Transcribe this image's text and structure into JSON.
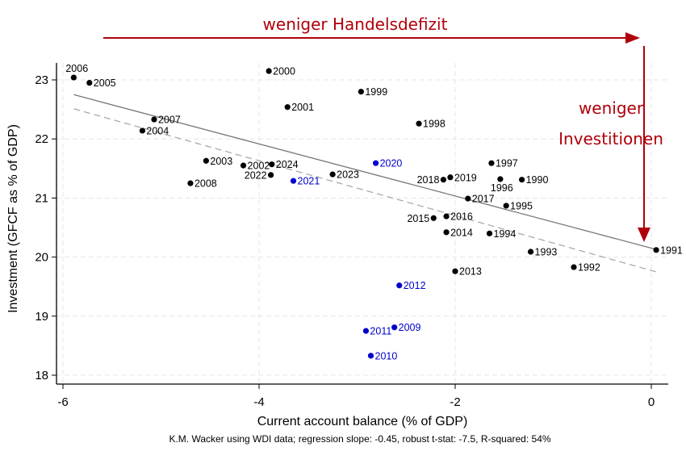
{
  "chart_data": {
    "type": "scatter",
    "title": "",
    "xlabel": "Current account balance (% of GDP)",
    "ylabel": "Investment (GFCF as % of GDP)",
    "note": "K.M. Wacker using WDI data; regression slope: -0.45, robust t-stat: -7.5, R-squared: 54%",
    "xlim": [
      -6.1,
      0.1
    ],
    "ylim": [
      17.85,
      23.3
    ],
    "xticks": [
      -6,
      -4,
      -2,
      0
    ],
    "yticks": [
      18,
      19,
      20,
      21,
      22,
      23
    ],
    "grid": true,
    "colors": {
      "default": "#000000",
      "highlight": "#0000cc",
      "fit": "#777777",
      "fit_dashed": "#aaaaaa",
      "annotation": "#b0000a"
    },
    "points": [
      {
        "label": "2006",
        "x": -5.89,
        "y": 23.04,
        "highlight": false
      },
      {
        "label": "2005",
        "x": -5.73,
        "y": 22.95,
        "highlight": false
      },
      {
        "label": "2007",
        "x": -5.07,
        "y": 22.33,
        "highlight": false
      },
      {
        "label": "2004",
        "x": -5.19,
        "y": 22.14,
        "highlight": false
      },
      {
        "label": "2000",
        "x": -3.9,
        "y": 23.15,
        "highlight": false
      },
      {
        "label": "2001",
        "x": -3.71,
        "y": 22.54,
        "highlight": false
      },
      {
        "label": "1999",
        "x": -2.96,
        "y": 22.8,
        "highlight": false
      },
      {
        "label": "1998",
        "x": -2.37,
        "y": 22.26,
        "highlight": false
      },
      {
        "label": "2003",
        "x": -4.54,
        "y": 21.63,
        "highlight": false
      },
      {
        "label": "2002",
        "x": -4.16,
        "y": 21.55,
        "highlight": false
      },
      {
        "label": "2024",
        "x": -3.87,
        "y": 21.57,
        "highlight": false
      },
      {
        "label": "2022",
        "x": -3.88,
        "y": 21.39,
        "highlight": false
      },
      {
        "label": "2021",
        "x": -3.65,
        "y": 21.29,
        "highlight": true
      },
      {
        "label": "2023",
        "x": -3.25,
        "y": 21.4,
        "highlight": false
      },
      {
        "label": "2008",
        "x": -4.7,
        "y": 21.25,
        "highlight": false
      },
      {
        "label": "2020",
        "x": -2.81,
        "y": 21.59,
        "highlight": true
      },
      {
        "label": "1997",
        "x": -1.63,
        "y": 21.59,
        "highlight": false
      },
      {
        "label": "2018",
        "x": -2.12,
        "y": 21.31,
        "highlight": false
      },
      {
        "label": "2019",
        "x": -2.05,
        "y": 21.35,
        "highlight": false
      },
      {
        "label": "1996",
        "x": -1.54,
        "y": 21.32,
        "highlight": false
      },
      {
        "label": "1990",
        "x": -1.32,
        "y": 21.31,
        "highlight": false
      },
      {
        "label": "2017",
        "x": -1.87,
        "y": 20.99,
        "highlight": false
      },
      {
        "label": "1995",
        "x": -1.48,
        "y": 20.87,
        "highlight": false
      },
      {
        "label": "2015",
        "x": -2.22,
        "y": 20.66,
        "highlight": false
      },
      {
        "label": "2016",
        "x": -2.09,
        "y": 20.69,
        "highlight": false
      },
      {
        "label": "2014",
        "x": -2.09,
        "y": 20.42,
        "highlight": false
      },
      {
        "label": "1994",
        "x": -1.65,
        "y": 20.4,
        "highlight": false
      },
      {
        "label": "1993",
        "x": -1.23,
        "y": 20.09,
        "highlight": false
      },
      {
        "label": "1991",
        "x": 0.05,
        "y": 20.12,
        "highlight": false
      },
      {
        "label": "1992",
        "x": -0.79,
        "y": 19.83,
        "highlight": false
      },
      {
        "label": "2013",
        "x": -2.0,
        "y": 19.76,
        "highlight": false
      },
      {
        "label": "2012",
        "x": -2.57,
        "y": 19.52,
        "highlight": true
      },
      {
        "label": "2009",
        "x": -2.62,
        "y": 18.81,
        "highlight": true
      },
      {
        "label": "2011",
        "x": -2.91,
        "y": 18.75,
        "highlight": true
      },
      {
        "label": "2010",
        "x": -2.86,
        "y": 18.33,
        "highlight": true
      }
    ],
    "fit_lines": [
      {
        "style": "solid",
        "x": [
          -5.89,
          0.05
        ],
        "y": [
          22.75,
          20.13
        ]
      },
      {
        "style": "dashed",
        "x": [
          -5.89,
          0.05
        ],
        "y": [
          22.51,
          19.75
        ]
      }
    ],
    "annotations": {
      "horizontal_arrow": "weniger Handelsdefizit",
      "vertical_arrow_line1": "weniger",
      "vertical_arrow_line2": "Investitionen"
    }
  }
}
